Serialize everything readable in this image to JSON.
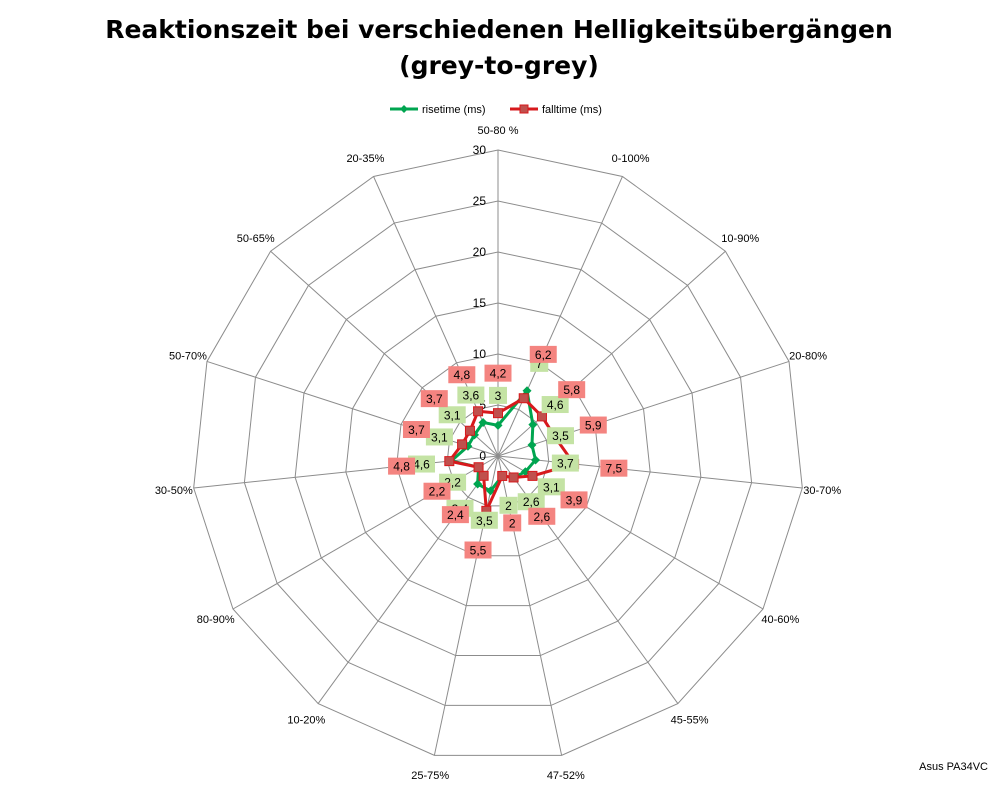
{
  "credit": "Asus PA34VC",
  "chart_data": {
    "type": "radar",
    "title": "Reaktionszeit bei verschiedenen Helligkeitsübergängen (grey-to-grey)",
    "title_lines": [
      "Reaktionszeit bei verschiedenen Helligkeitsübergängen",
      "(grey-to-grey)"
    ],
    "categories": [
      "50-80 %",
      "0-100%",
      "10-90%",
      "20-80%",
      "30-70%",
      "40-60%",
      "45-55%",
      "47-52%",
      "25-75%",
      "10-20%",
      "80-90%",
      "30-50%",
      "50-70%",
      "50-65%",
      "20-35%"
    ],
    "r_ticks": [
      0,
      5,
      10,
      15,
      20,
      25,
      30
    ],
    "rlim": [
      0,
      30
    ],
    "grid": true,
    "legend_position": "top",
    "series": [
      {
        "name": "risetime (ms)",
        "color": "#00A550",
        "label_bg": "#C4E3A4",
        "marker": "diamond",
        "values": [
          3.0,
          7.0,
          4.6,
          3.5,
          3.7,
          3.1,
          2.6,
          2.0,
          3.5,
          3.4,
          2.2,
          4.6,
          3.1,
          3.1,
          3.6
        ],
        "labels": [
          "3",
          "7",
          "4,6",
          "3,5",
          "3,7",
          "3,1",
          "2,6",
          "2",
          "3,5",
          "3,4",
          "2,2",
          "4,6",
          "3,1",
          "3,1",
          "3,6"
        ]
      },
      {
        "name": "falltime (ms)",
        "color": "#D7191C",
        "label_bg": "#F48480",
        "marker": "square",
        "values": [
          4.2,
          6.2,
          5.8,
          5.9,
          7.5,
          3.9,
          2.6,
          2.0,
          5.5,
          2.4,
          2.2,
          4.8,
          3.7,
          3.7,
          4.8
        ],
        "labels": [
          "4,2",
          "6,2",
          "5,8",
          "5,9",
          "7,5",
          "3,9",
          "2,6",
          "2",
          "5,5",
          "2,4",
          "2,2",
          "4,8",
          "3,7",
          "3,7",
          "4,8"
        ]
      }
    ]
  }
}
